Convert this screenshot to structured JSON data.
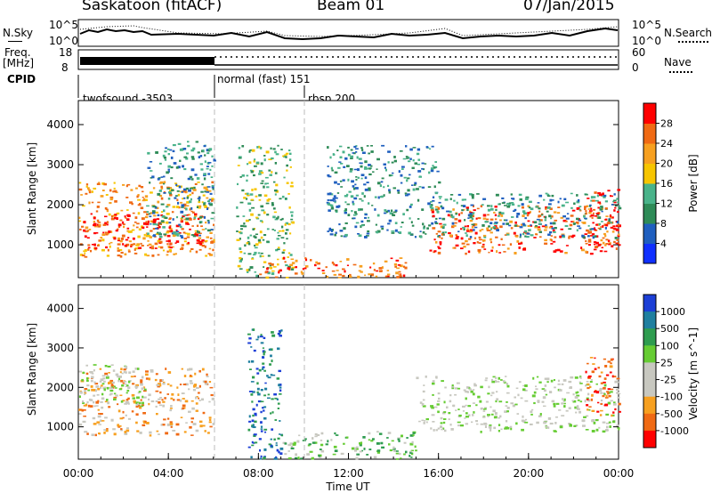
{
  "header": {
    "radar": "Saskatoon (fitACF)",
    "beam": "Beam 01",
    "date": "07/Jan/2015"
  },
  "top_panels": {
    "nsky_label": "N.Sky",
    "nsky_ticks": [
      "10^5",
      "10^0"
    ],
    "nsearch_label": "N.Search",
    "nsearch_ticks": [
      "10^5",
      "10^0"
    ],
    "freq_label_1": "Freq.",
    "freq_label_2": "[MHz]",
    "freq_ticks": [
      "18",
      "8"
    ],
    "nave_label": "Nave",
    "nave_ticks": [
      "60",
      "0"
    ],
    "cpid_label": "CPID",
    "cpid_segments": [
      {
        "name": "twofsound -3503",
        "start_hour": 0
      },
      {
        "name": "normal (fast) 151",
        "start_hour": 6
      },
      {
        "name": "rbsp 200",
        "start_hour": 10
      }
    ]
  },
  "chart_data": [
    {
      "type": "heatmap",
      "parameter": "Power",
      "ylabel": "Slant Range [km]",
      "xlabel": "",
      "ylim": [
        180,
        4600
      ],
      "yticks": [
        1000,
        2000,
        3000,
        4000
      ],
      "xlim_hours": [
        0,
        24
      ],
      "colorbar": {
        "title": "Power [dB]",
        "ticks": [
          "4",
          "8",
          "12",
          "16",
          "20",
          "24",
          "28"
        ],
        "colors": [
          "#1030ff",
          "#1f5fbf",
          "#2e8b57",
          "#49b38a",
          "#f7c500",
          "#f7a020",
          "#f06a14",
          "#ff0000"
        ]
      },
      "echo_regions": [
        {
          "t0": 0.0,
          "t1": 6.0,
          "r0": 700,
          "r1": 2600,
          "level": 5
        },
        {
          "t0": 0.2,
          "t1": 5.5,
          "r0": 900,
          "r1": 1800,
          "level": 7
        },
        {
          "t0": 3.0,
          "t1": 6.0,
          "r0": 1200,
          "r1": 3600,
          "level": 2
        },
        {
          "t0": 7.0,
          "t1": 9.5,
          "r0": 200,
          "r1": 3500,
          "level": 3
        },
        {
          "t0": 8.0,
          "t1": 14.5,
          "r0": 200,
          "r1": 700,
          "level": 6
        },
        {
          "t0": 11.0,
          "t1": 16.0,
          "r0": 1200,
          "r1": 3500,
          "level": 2
        },
        {
          "t0": 15.5,
          "t1": 24.0,
          "r0": 800,
          "r1": 2000,
          "level": 6
        },
        {
          "t0": 16.0,
          "t1": 24.0,
          "r0": 1200,
          "r1": 2300,
          "level": 2
        },
        {
          "t0": 22.5,
          "t1": 24.0,
          "r0": 900,
          "r1": 2400,
          "level": 7
        }
      ]
    },
    {
      "type": "heatmap",
      "parameter": "Velocity",
      "ylabel": "Slant Range [km]",
      "xlabel": "Time UT",
      "ylim": [
        180,
        4600
      ],
      "yticks": [
        1000,
        2000,
        3000,
        4000
      ],
      "xlim_hours": [
        0,
        24
      ],
      "xtick_labels": [
        "00:00",
        "04:00",
        "08:00",
        "12:00",
        "16:00",
        "20:00",
        "00:00"
      ],
      "colorbar": {
        "title": "Velocity [m s^-1]",
        "ticks": [
          "1000",
          "500",
          "100",
          "25",
          "-25",
          "-100",
          "-500",
          "-1000"
        ],
        "colors": [
          "#1c3fd6",
          "#1f7f9f",
          "#2e9c4f",
          "#66cc33",
          "#c8c8c0",
          "#c8c8c0",
          "#f7a020",
          "#f06a14",
          "#ff0000"
        ]
      },
      "echo_regions": [
        {
          "t0": 0.0,
          "t1": 6.0,
          "r0": 800,
          "r1": 2500,
          "level": 6
        },
        {
          "t0": 0.0,
          "t1": 3.0,
          "r0": 1500,
          "r1": 2600,
          "level": 4
        },
        {
          "t0": 7.5,
          "t1": 9.0,
          "r0": 200,
          "r1": 3500,
          "level": 1
        },
        {
          "t0": 9.0,
          "t1": 15.0,
          "r0": 200,
          "r1": 900,
          "level": 3
        },
        {
          "t0": 15.0,
          "t1": 24.0,
          "r0": 900,
          "r1": 2300,
          "level": 4
        },
        {
          "t0": 22.5,
          "t1": 24.0,
          "r0": 1300,
          "r1": 2800,
          "level": 7
        }
      ]
    }
  ]
}
